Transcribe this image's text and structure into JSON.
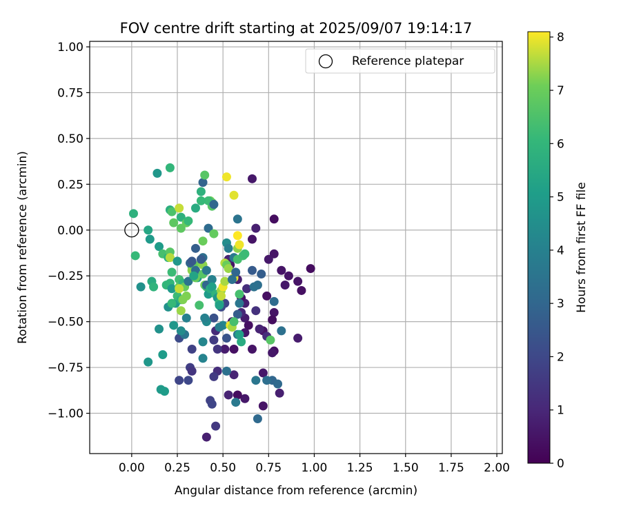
{
  "chart_data": {
    "type": "scatter",
    "title": "FOV centre drift starting at 2025/09/07 19:14:17",
    "xlabel": "Angular distance from reference (arcmin)",
    "ylabel": "Rotation from reference (arcmin)",
    "xlim": [
      -0.23,
      2.03
    ],
    "ylim": [
      -1.22,
      1.03
    ],
    "xticks": [
      0.0,
      0.25,
      0.5,
      0.75,
      1.0,
      1.25,
      1.5,
      1.75,
      2.0
    ],
    "xtick_labels": [
      "0.00",
      "0.25",
      "0.50",
      "0.75",
      "1.00",
      "1.25",
      "1.50",
      "1.75",
      "2.00"
    ],
    "yticks": [
      1.0,
      0.75,
      0.5,
      0.25,
      0.0,
      -0.25,
      -0.5,
      -0.75,
      -1.0
    ],
    "ytick_labels": [
      "1.00",
      "0.75",
      "0.50",
      "0.25",
      "0.00",
      "−0.25",
      "−0.50",
      "−0.75",
      "−1.00"
    ],
    "grid": true,
    "legend": {
      "position": "top-right",
      "label": "Reference platepar"
    },
    "reference_point": {
      "x": 0.0,
      "y": 0.0
    },
    "colorbar": {
      "label": "Hours from first FF file",
      "min": 0,
      "max": 8.1,
      "ticks": [
        0,
        1,
        2,
        3,
        4,
        5,
        6,
        7,
        8
      ],
      "tick_labels": [
        "0",
        "1",
        "2",
        "3",
        "4",
        "5",
        "6",
        "7",
        "8"
      ],
      "colormap": "viridis"
    },
    "points": [
      [
        0.98,
        -0.21,
        0.3
      ],
      [
        0.93,
        -0.33,
        0.4
      ],
      [
        0.91,
        -0.28,
        0.5
      ],
      [
        0.86,
        -0.25,
        0.5
      ],
      [
        0.84,
        -0.3,
        0.6
      ],
      [
        0.82,
        -0.22,
        0.5
      ],
      [
        0.78,
        -0.13,
        0.5
      ],
      [
        0.78,
        0.06,
        0.3
      ],
      [
        0.75,
        -0.16,
        0.6
      ],
      [
        0.66,
        0.28,
        0.6
      ],
      [
        0.66,
        -0.05,
        0.5
      ],
      [
        0.68,
        0.01,
        0.8
      ],
      [
        0.74,
        -0.36,
        0.4
      ],
      [
        0.78,
        -0.45,
        0.5
      ],
      [
        0.77,
        -0.49,
        0.3
      ],
      [
        0.72,
        -0.55,
        0.5
      ],
      [
        0.78,
        -0.66,
        0.4
      ],
      [
        0.77,
        -0.67,
        0.6
      ],
      [
        0.91,
        -0.59,
        0.7
      ],
      [
        0.81,
        -0.89,
        0.8
      ],
      [
        0.72,
        -0.78,
        0.6
      ],
      [
        0.72,
        -0.96,
        0.5
      ],
      [
        0.62,
        -0.92,
        0.6
      ],
      [
        0.58,
        -0.9,
        0.3
      ],
      [
        0.53,
        -0.9,
        0.9
      ],
      [
        0.56,
        -0.79,
        0.9
      ],
      [
        0.47,
        -0.77,
        1.2
      ],
      [
        0.45,
        -0.8,
        1.6
      ],
      [
        0.43,
        -0.93,
        1.8
      ],
      [
        0.44,
        -0.95,
        1.9
      ],
      [
        0.46,
        -1.07,
        1.5
      ],
      [
        0.41,
        -1.13,
        0.8
      ],
      [
        0.56,
        -0.65,
        0.4
      ],
      [
        0.51,
        -0.65,
        0.7
      ],
      [
        0.47,
        -0.65,
        1.4
      ],
      [
        0.46,
        -0.55,
        1.1
      ],
      [
        0.45,
        -0.6,
        1.6
      ],
      [
        0.55,
        -0.5,
        0.6
      ],
      [
        0.62,
        -0.48,
        0.7
      ],
      [
        0.64,
        -0.52,
        0.4
      ],
      [
        0.62,
        -0.56,
        0.6
      ],
      [
        0.66,
        -0.65,
        0.5
      ],
      [
        0.7,
        -0.54,
        0.9
      ],
      [
        0.74,
        -0.58,
        1.2
      ],
      [
        0.68,
        -0.44,
        1.3
      ],
      [
        0.62,
        -0.4,
        0.8
      ],
      [
        0.6,
        -0.37,
        0.5
      ],
      [
        0.6,
        -0.45,
        1.0
      ],
      [
        0.56,
        -0.26,
        0.6
      ],
      [
        0.54,
        -0.19,
        0.5
      ],
      [
        0.53,
        -0.16,
        0.9
      ],
      [
        0.58,
        -0.27,
        0.8
      ],
      [
        0.63,
        -0.32,
        1.2
      ],
      [
        0.66,
        -0.22,
        2.6
      ],
      [
        0.71,
        -0.24,
        2.7
      ],
      [
        0.69,
        -0.3,
        3.3
      ],
      [
        0.67,
        -0.31,
        3.4
      ],
      [
        0.78,
        -0.39,
        3.2
      ],
      [
        0.82,
        -0.55,
        3.4
      ],
      [
        0.77,
        -0.82,
        3.0
      ],
      [
        0.8,
        -0.84,
        3.1
      ],
      [
        0.74,
        -0.82,
        3.3
      ],
      [
        0.68,
        -0.82,
        3.6
      ],
      [
        0.69,
        -1.03,
        3.1
      ],
      [
        0.57,
        -0.94,
        3.7
      ],
      [
        0.52,
        -0.77,
        3.4
      ],
      [
        0.52,
        -0.59,
        2.4
      ],
      [
        0.58,
        -0.57,
        3.6
      ],
      [
        0.58,
        -0.46,
        2.7
      ],
      [
        0.59,
        -0.4,
        3.6
      ],
      [
        0.51,
        -0.4,
        1.9
      ],
      [
        0.49,
        -0.42,
        2.1
      ],
      [
        0.45,
        -0.48,
        2.3
      ],
      [
        0.5,
        -0.52,
        4.2
      ],
      [
        0.48,
        -0.53,
        3.9
      ],
      [
        0.41,
        -0.5,
        4.3
      ],
      [
        0.4,
        -0.48,
        4.0
      ],
      [
        0.39,
        -0.61,
        4.2
      ],
      [
        0.39,
        -0.7,
        4.1
      ],
      [
        0.33,
        -0.65,
        1.8
      ],
      [
        0.32,
        -0.75,
        1.7
      ],
      [
        0.33,
        -0.77,
        1.4
      ],
      [
        0.31,
        -0.82,
        2.0
      ],
      [
        0.26,
        -0.82,
        1.9
      ],
      [
        0.26,
        -0.59,
        2.1
      ],
      [
        0.29,
        -0.57,
        3.6
      ],
      [
        0.27,
        -0.55,
        4.4
      ],
      [
        0.23,
        -0.52,
        4.8
      ],
      [
        0.24,
        -0.4,
        4.9
      ],
      [
        0.2,
        -0.42,
        4.6
      ],
      [
        0.19,
        -0.3,
        6.0
      ],
      [
        0.21,
        -0.29,
        6.0
      ],
      [
        0.22,
        -0.32,
        4.9
      ],
      [
        0.16,
        -0.87,
        4.9
      ],
      [
        0.18,
        -0.88,
        5.0
      ],
      [
        0.17,
        -0.68,
        5.0
      ],
      [
        0.15,
        -0.54,
        4.6
      ],
      [
        0.09,
        -0.72,
        4.8
      ],
      [
        0.11,
        -0.28,
        5.6
      ],
      [
        0.12,
        -0.31,
        5.9
      ],
      [
        0.05,
        -0.31,
        4.6
      ],
      [
        0.02,
        -0.14,
        6.1
      ],
      [
        0.01,
        0.09,
        5.8
      ],
      [
        0.09,
        0.0,
        5.4
      ],
      [
        0.1,
        -0.05,
        4.9
      ],
      [
        0.15,
        -0.09,
        5.0
      ],
      [
        0.14,
        0.31,
        4.8
      ],
      [
        0.21,
        0.34,
        6.0
      ],
      [
        0.21,
        0.11,
        5.7
      ],
      [
        0.22,
        0.1,
        6.5
      ],
      [
        0.23,
        0.04,
        6.8
      ],
      [
        0.26,
        0.12,
        7.7
      ],
      [
        0.27,
        0.07,
        5.8
      ],
      [
        0.27,
        0.01,
        6.8
      ],
      [
        0.3,
        0.04,
        6.9
      ],
      [
        0.31,
        0.05,
        6.1
      ],
      [
        0.17,
        -0.13,
        6.4
      ],
      [
        0.2,
        -0.15,
        5.8
      ],
      [
        0.21,
        -0.12,
        6.7
      ],
      [
        0.21,
        -0.15,
        7.6
      ],
      [
        0.22,
        -0.23,
        6.2
      ],
      [
        0.25,
        -0.17,
        4.8
      ],
      [
        0.26,
        -0.27,
        6.3
      ],
      [
        0.26,
        -0.31,
        6.8
      ],
      [
        0.28,
        -0.29,
        5.9
      ],
      [
        0.25,
        -0.36,
        6.2
      ],
      [
        0.27,
        -0.38,
        5.8
      ],
      [
        0.27,
        -0.44,
        7.4
      ],
      [
        0.29,
        -0.31,
        7.0
      ],
      [
        0.3,
        -0.36,
        7.2
      ],
      [
        0.3,
        -0.48,
        4.0
      ],
      [
        0.31,
        -0.28,
        3.5
      ],
      [
        0.33,
        -0.2,
        6.5
      ],
      [
        0.33,
        -0.22,
        7.3
      ],
      [
        0.34,
        -0.19,
        6.8
      ],
      [
        0.32,
        -0.18,
        2.9
      ],
      [
        0.33,
        -0.17,
        2.5
      ],
      [
        0.35,
        -0.22,
        3.2
      ],
      [
        0.36,
        -0.26,
        5.0
      ],
      [
        0.37,
        -0.41,
        6.4
      ],
      [
        0.38,
        -0.18,
        7.1
      ],
      [
        0.39,
        -0.24,
        6.7
      ],
      [
        0.39,
        -0.19,
        7.3
      ],
      [
        0.4,
        -0.3,
        7.1
      ],
      [
        0.41,
        -0.31,
        6.3
      ],
      [
        0.39,
        -0.15,
        3.3
      ],
      [
        0.38,
        -0.16,
        2.6
      ],
      [
        0.35,
        -0.1,
        2.7
      ],
      [
        0.39,
        -0.06,
        7.0
      ],
      [
        0.41,
        -0.3,
        3.0
      ],
      [
        0.41,
        -0.22,
        3.7
      ],
      [
        0.42,
        -0.35,
        5.0
      ],
      [
        0.43,
        -0.32,
        5.6
      ],
      [
        0.44,
        -0.27,
        4.0
      ],
      [
        0.44,
        -0.31,
        5.2
      ],
      [
        0.46,
        -0.35,
        5.9
      ],
      [
        0.47,
        -0.37,
        4.8
      ],
      [
        0.48,
        -0.4,
        6.1
      ],
      [
        0.48,
        -0.41,
        5.2
      ],
      [
        0.49,
        -0.33,
        7.4
      ],
      [
        0.49,
        -0.36,
        7.7
      ],
      [
        0.5,
        -0.31,
        8.0
      ],
      [
        0.51,
        -0.28,
        7.5
      ],
      [
        0.51,
        -0.18,
        7.6
      ],
      [
        0.52,
        -0.07,
        4.4
      ],
      [
        0.53,
        -0.1,
        3.9
      ],
      [
        0.52,
        -0.19,
        7.0
      ],
      [
        0.53,
        -0.21,
        7.4
      ],
      [
        0.56,
        -0.15,
        3.7
      ],
      [
        0.58,
        -0.16,
        6.4
      ],
      [
        0.58,
        -0.1,
        7.3
      ],
      [
        0.59,
        -0.08,
        8.0
      ],
      [
        0.58,
        -0.03,
        8.1
      ],
      [
        0.61,
        -0.14,
        6.3
      ],
      [
        0.62,
        -0.13,
        6.2
      ],
      [
        0.56,
        -0.26,
        7.9
      ],
      [
        0.55,
        -0.27,
        3.4
      ],
      [
        0.57,
        -0.23,
        3.0
      ],
      [
        0.54,
        -0.52,
        8.0
      ],
      [
        0.55,
        -0.53,
        7.5
      ],
      [
        0.56,
        -0.5,
        6.4
      ],
      [
        0.59,
        -0.35,
        6.4
      ],
      [
        0.6,
        -0.61,
        5.6
      ],
      [
        0.59,
        -0.57,
        5.2
      ],
      [
        0.76,
        -0.6,
        6.7
      ],
      [
        0.58,
        0.06,
        3.5
      ],
      [
        0.52,
        0.29,
        8.0
      ],
      [
        0.56,
        0.19,
        7.9
      ],
      [
        0.43,
        0.16,
        7.1
      ],
      [
        0.44,
        0.15,
        6.8
      ],
      [
        0.44,
        0.13,
        6.7
      ],
      [
        0.42,
        0.16,
        6.2
      ],
      [
        0.38,
        0.16,
        6.1
      ],
      [
        0.38,
        0.21,
        5.8
      ],
      [
        0.39,
        0.26,
        2.9
      ],
      [
        0.4,
        0.3,
        6.7
      ],
      [
        0.45,
        0.14,
        3.0
      ],
      [
        0.42,
        0.01,
        3.2
      ],
      [
        0.45,
        -0.02,
        6.9
      ],
      [
        0.35,
        0.12,
        5.6
      ],
      [
        0.28,
        -0.38,
        7.2
      ],
      [
        0.26,
        -0.32,
        7.7
      ],
      [
        0.35,
        -0.26,
        7.0
      ],
      [
        0.34,
        -0.25,
        5.3
      ],
      [
        0.22,
        -0.4,
        6.1
      ]
    ]
  }
}
